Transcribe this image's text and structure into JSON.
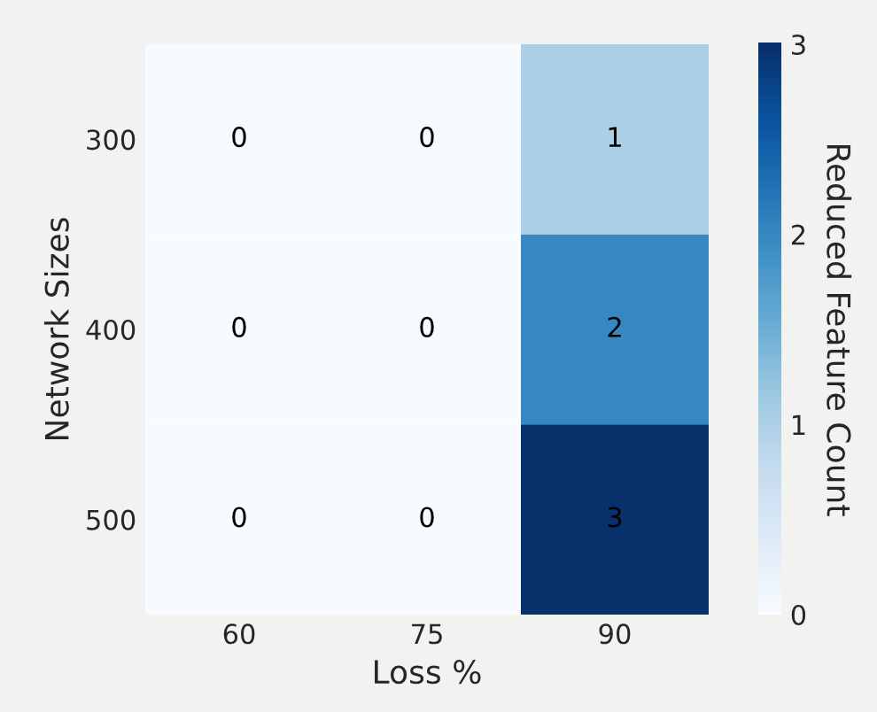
{
  "chart_data": {
    "type": "heatmap",
    "xlabel": "Loss %",
    "ylabel": "Network Sizes",
    "clabel": "Reduced Feature Count",
    "categories": [
      "60",
      "75",
      "90"
    ],
    "y_categories": [
      "300",
      "400",
      "500"
    ],
    "cells": [
      [
        0,
        0,
        1
      ],
      [
        0,
        0,
        2
      ],
      [
        0,
        0,
        3
      ]
    ],
    "clim": [
      0,
      3
    ],
    "cticks": [
      0,
      1,
      2,
      3
    ],
    "data_labels": true
  }
}
